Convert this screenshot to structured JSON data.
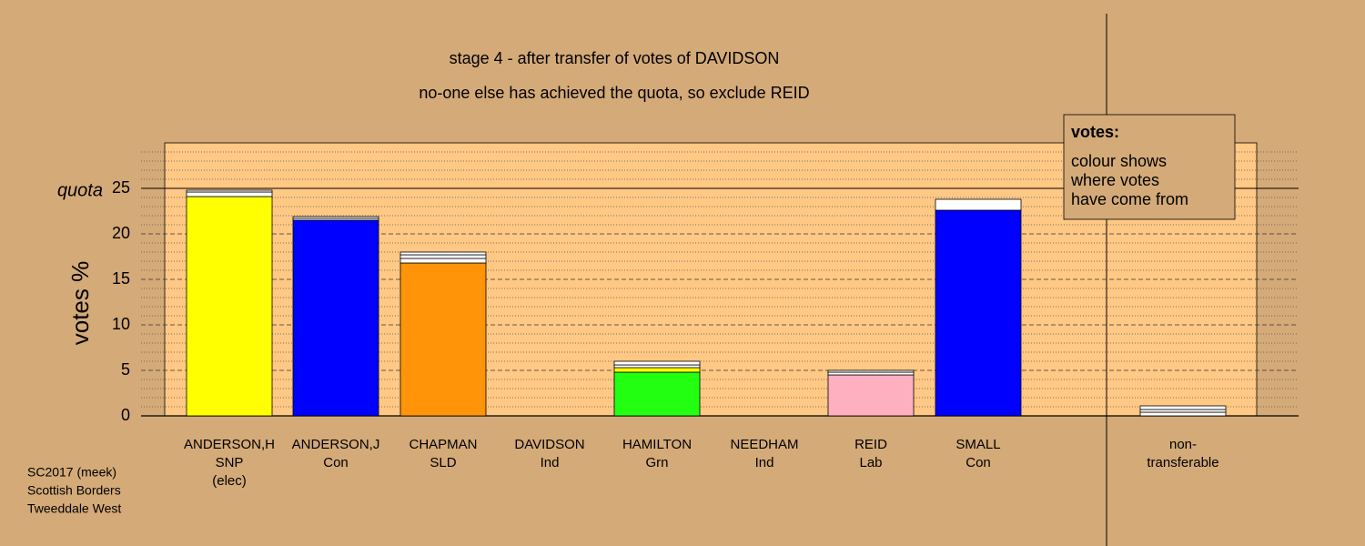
{
  "chart_data": {
    "type": "stacked-bar",
    "title": "stage 4 - after transfer of votes of DAVIDSON",
    "subtitle": "no-one else has achieved the quota, so exclude REID",
    "ylabel": "votes %",
    "quota_label": "quota",
    "quota": 25,
    "ylim": [
      0,
      30
    ],
    "yticks": [
      0,
      5,
      10,
      15,
      20,
      25
    ],
    "minor_yticks": [
      1,
      2,
      3,
      4,
      6,
      7,
      8,
      9,
      11,
      12,
      13,
      14,
      16,
      17,
      18,
      19,
      21,
      22,
      23,
      24,
      26,
      27,
      28,
      29
    ],
    "categories": [
      [
        "ANDERSON,H",
        "SNP",
        "(elec)"
      ],
      [
        "ANDERSON,J",
        "Con"
      ],
      [
        "CHAPMAN",
        "SLD"
      ],
      [
        "DAVIDSON",
        "Ind"
      ],
      [
        "HAMILTON",
        "Grn"
      ],
      [
        "NEEDHAM",
        "Ind"
      ],
      [
        "REID",
        "Lab"
      ],
      [
        "SMALL",
        "Con"
      ],
      [
        "non-",
        "transferable"
      ]
    ],
    "stacks": [
      [
        {
          "value": 24.1,
          "color": "#ffff00"
        },
        {
          "value": 0.5,
          "color": "#ffffff"
        },
        {
          "value": 0.2,
          "color": "#ffffff"
        }
      ],
      [
        {
          "value": 21.5,
          "color": "#0000ff"
        },
        {
          "value": 0.2,
          "color": "#ffffff"
        },
        {
          "value": 0.2,
          "color": "#ffffff"
        }
      ],
      [
        {
          "value": 16.8,
          "color": "#ff9408"
        },
        {
          "value": 0.5,
          "color": "#ffffff"
        },
        {
          "value": 0.4,
          "color": "#ffffff"
        },
        {
          "value": 0.3,
          "color": "#ffffff"
        }
      ],
      [],
      [
        {
          "value": 4.8,
          "color": "#22ff11"
        },
        {
          "value": 0.5,
          "color": "#ffff00"
        },
        {
          "value": 0.3,
          "color": "#ffffff"
        },
        {
          "value": 0.4,
          "color": "#ffffff"
        }
      ],
      [],
      [
        {
          "value": 4.5,
          "color": "#ffb0c0"
        },
        {
          "value": 0.3,
          "color": "#ffffff"
        },
        {
          "value": 0.2,
          "color": "#ffffff"
        }
      ],
      [
        {
          "value": 22.6,
          "color": "#0000ff"
        },
        {
          "value": 1.2,
          "color": "#ffffff"
        }
      ],
      [
        {
          "value": 0.4,
          "color": "#ffffff"
        },
        {
          "value": 0.3,
          "color": "#ffffff"
        },
        {
          "value": 0.4,
          "color": "#ffffff"
        }
      ]
    ],
    "legend_title": "votes:",
    "legend_lines": [
      "colour shows",
      "where votes",
      "have come from"
    ],
    "footnote": [
      "SC2017 (meek)",
      "Scottish Borders",
      "Tweeddale West"
    ]
  }
}
